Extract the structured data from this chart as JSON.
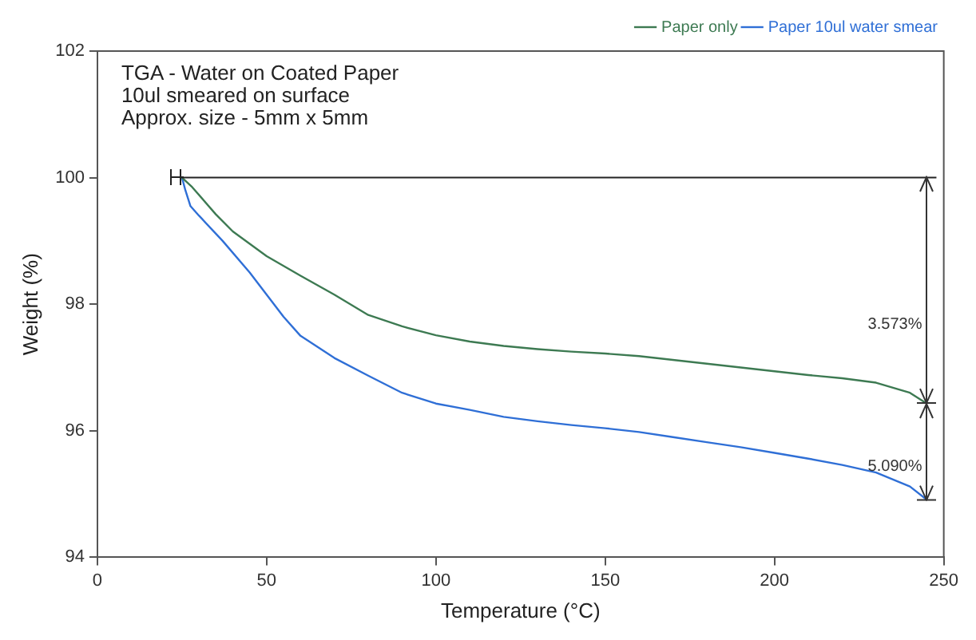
{
  "chart_data": {
    "type": "line",
    "title": "TGA - Water on Coated Paper",
    "subtitle": "10ul smeared on surface\nApprox. size - 5mm x 5mm",
    "annotations": [
      "3.573%",
      "5.090%"
    ],
    "xlabel": "Temperature (°C)",
    "ylabel": "Weight (%)",
    "series": [
      {
        "name": "Paper only",
        "color": "#3d7a52",
        "x": [
          25,
          28,
          35,
          40,
          50,
          60,
          70,
          80,
          90,
          100,
          110,
          120,
          130,
          140,
          150,
          160,
          170,
          180,
          190,
          200,
          210,
          220,
          230,
          240,
          245
        ],
        "values": [
          100,
          99.85,
          99.42,
          99.15,
          98.76,
          98.45,
          98.15,
          97.83,
          97.65,
          97.51,
          97.41,
          97.34,
          97.29,
          97.25,
          97.22,
          97.18,
          97.12,
          97.06,
          97,
          96.94,
          96.88,
          96.83,
          96.76,
          96.6,
          96.43
        ]
      },
      {
        "name": "Paper 10ul water smear",
        "color": "#2f6fd6",
        "x": [
          25,
          26,
          27.5,
          30,
          37,
          45,
          50,
          55,
          60,
          70,
          80,
          90,
          100,
          110,
          120,
          130,
          140,
          150,
          160,
          170,
          180,
          190,
          200,
          210,
          220,
          230,
          240,
          245
        ],
        "values": [
          100,
          99.8,
          99.55,
          99.4,
          99,
          98.5,
          98.15,
          97.8,
          97.5,
          97.15,
          96.87,
          96.6,
          96.43,
          96.33,
          96.22,
          96.15,
          96.09,
          96.04,
          95.98,
          95.9,
          95.82,
          95.74,
          95.65,
          95.56,
          95.46,
          95.34,
          95.12,
          94.91
        ]
      }
    ],
    "ref_lines": [
      {
        "axis": "y",
        "value": 100,
        "color": "#222222"
      }
    ],
    "xlim": [
      0,
      250
    ],
    "xticks": [
      0,
      50,
      100,
      150,
      200,
      250
    ],
    "ylim": [
      94,
      102
    ],
    "yticks": [
      94,
      96,
      98,
      100,
      102
    ],
    "legend": "top right",
    "grid": false,
    "marker": "none",
    "line_style": "solid"
  }
}
